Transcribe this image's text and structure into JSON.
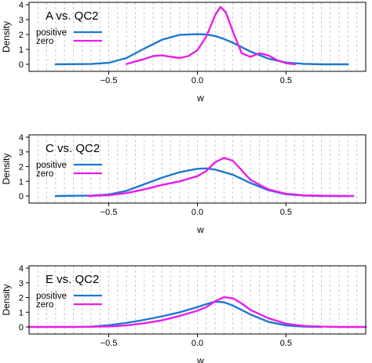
{
  "figure": {
    "ylabel": "Density",
    "xlabel": "w"
  },
  "chart_data": [
    {
      "type": "line",
      "title": "A  vs.  QC2",
      "xlabel": "w",
      "ylabel": "Density",
      "xlim": [
        -0.95,
        0.95
      ],
      "ylim": [
        0,
        4
      ],
      "xticks": [
        "−0.5",
        "0.0",
        "0.5"
      ],
      "xtick_values": [
        -0.5,
        0.0,
        0.5
      ],
      "yticks": [
        "0",
        "1",
        "2",
        "3",
        "4"
      ],
      "ytick_values": [
        0,
        1,
        2,
        3,
        4
      ],
      "grid": "vertical dashed every 0.05",
      "legend_position": "top-left",
      "series": [
        {
          "name": "positive",
          "color": "#1f78d1",
          "x": [
            -0.8,
            -0.6,
            -0.5,
            -0.4,
            -0.3,
            -0.2,
            -0.1,
            0.0,
            0.05,
            0.1,
            0.15,
            0.2,
            0.3,
            0.4,
            0.5,
            0.6,
            0.7,
            0.85
          ],
          "y": [
            0.0,
            0.02,
            0.1,
            0.42,
            1.05,
            1.65,
            1.98,
            2.02,
            2.0,
            1.9,
            1.7,
            1.45,
            0.85,
            0.38,
            0.12,
            0.03,
            0.0,
            0.0
          ]
        },
        {
          "name": "zero",
          "color": "#e81ee8",
          "x": [
            -0.4,
            -0.3,
            -0.25,
            -0.2,
            -0.15,
            -0.1,
            -0.05,
            0.0,
            0.05,
            0.1,
            0.13,
            0.16,
            0.2,
            0.25,
            0.3,
            0.35,
            0.4,
            0.45,
            0.5,
            0.55
          ],
          "y": [
            0.02,
            0.35,
            0.55,
            0.6,
            0.5,
            0.42,
            0.55,
            0.95,
            1.85,
            3.3,
            3.85,
            3.5,
            2.2,
            0.75,
            0.5,
            0.75,
            0.6,
            0.28,
            0.08,
            0.0
          ]
        }
      ]
    },
    {
      "type": "line",
      "title": "C  vs.  QC2",
      "xlabel": "w",
      "ylabel": "Density",
      "xlim": [
        -0.95,
        0.95
      ],
      "ylim": [
        0,
        4
      ],
      "xticks": [
        "−0.5",
        "0.0",
        "0.5"
      ],
      "xtick_values": [
        -0.5,
        0.0,
        0.5
      ],
      "yticks": [
        "0",
        "1",
        "2",
        "3",
        "4"
      ],
      "ytick_values": [
        0,
        1,
        2,
        3,
        4
      ],
      "grid": "vertical dashed every 0.05",
      "legend_position": "top-left",
      "series": [
        {
          "name": "positive",
          "color": "#1f78d1",
          "x": [
            -0.8,
            -0.6,
            -0.5,
            -0.4,
            -0.3,
            -0.2,
            -0.1,
            0.0,
            0.05,
            0.1,
            0.2,
            0.3,
            0.4,
            0.5,
            0.6,
            0.7,
            0.85
          ],
          "y": [
            0.0,
            0.03,
            0.1,
            0.35,
            0.8,
            1.25,
            1.62,
            1.85,
            1.88,
            1.8,
            1.45,
            0.88,
            0.4,
            0.12,
            0.03,
            0.0,
            0.0
          ]
        },
        {
          "name": "zero",
          "color": "#e81ee8",
          "x": [
            -0.62,
            -0.5,
            -0.4,
            -0.3,
            -0.2,
            -0.1,
            0.0,
            0.05,
            0.1,
            0.15,
            0.2,
            0.25,
            0.3,
            0.4,
            0.5,
            0.6,
            0.7,
            0.8,
            0.88
          ],
          "y": [
            0.0,
            0.05,
            0.2,
            0.45,
            0.75,
            1.0,
            1.35,
            1.7,
            2.3,
            2.6,
            2.4,
            1.75,
            1.1,
            0.45,
            0.15,
            0.05,
            0.02,
            0.0,
            0.0
          ]
        }
      ]
    },
    {
      "type": "line",
      "title": "E  vs.  QC2",
      "xlabel": "w",
      "ylabel": "Density",
      "xlim": [
        -0.95,
        0.95
      ],
      "ylim": [
        0,
        4
      ],
      "xticks": [
        "−0.5",
        "0.0",
        "0.5"
      ],
      "xtick_values": [
        -0.5,
        0.0,
        0.5
      ],
      "yticks": [
        "0",
        "1",
        "2",
        "3",
        "4"
      ],
      "ytick_values": [
        0,
        1,
        2,
        3,
        4
      ],
      "grid": "vertical dashed every 0.05",
      "legend_position": "top-left",
      "series": [
        {
          "name": "positive",
          "color": "#1f78d1",
          "x": [
            -0.62,
            -0.5,
            -0.4,
            -0.3,
            -0.2,
            -0.1,
            0.0,
            0.05,
            0.1,
            0.15,
            0.2,
            0.3,
            0.4,
            0.5,
            0.6,
            0.7
          ],
          "y": [
            0.0,
            0.12,
            0.28,
            0.48,
            0.72,
            1.0,
            1.35,
            1.55,
            1.72,
            1.68,
            1.45,
            0.85,
            0.35,
            0.1,
            0.02,
            0.0
          ]
        },
        {
          "name": "zero",
          "color": "#e81ee8",
          "x": [
            -0.95,
            -0.7,
            -0.5,
            -0.4,
            -0.3,
            -0.2,
            -0.1,
            0.0,
            0.05,
            0.1,
            0.15,
            0.2,
            0.25,
            0.3,
            0.4,
            0.5,
            0.6,
            0.7,
            0.8,
            0.95
          ],
          "y": [
            0.0,
            0.0,
            0.03,
            0.1,
            0.25,
            0.45,
            0.75,
            1.1,
            1.35,
            1.75,
            2.02,
            1.95,
            1.6,
            1.15,
            0.6,
            0.22,
            0.07,
            0.02,
            0.0,
            0.0
          ]
        }
      ]
    }
  ]
}
